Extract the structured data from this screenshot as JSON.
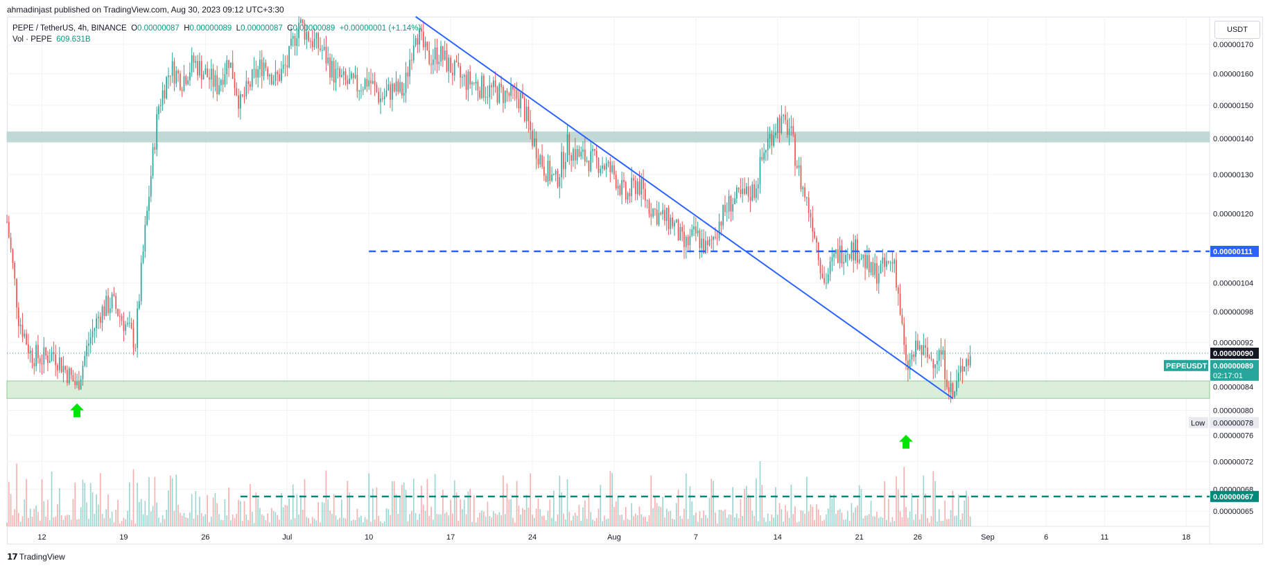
{
  "header": {
    "published": "ahmadinjast published on TradingView.com, Aug 30, 2023 09:12 UTC+3:30"
  },
  "legend": {
    "symbol": "PEPE / TetherUS, 4h, BINANCE",
    "open_label": "O",
    "open": "0.00000087",
    "high_label": "H",
    "high": "0.00000089",
    "low_label": "L",
    "low": "0.00000087",
    "close_label": "C",
    "close": "0.00000089",
    "change": "+0.00000001 (+1.14%)",
    "vol_label": "Vol · PEPE",
    "vol_value": "609.631B"
  },
  "currency": "USDT",
  "branding": {
    "logo_text": "TradingView"
  },
  "colors": {
    "up": "#26a69a",
    "down": "#ef5350",
    "trendline": "#2962ff",
    "level_blue": "#2962ff",
    "level_green": "#00897b",
    "resistance_zone": "#b7d3cf",
    "support_zone": "#d4ecd4",
    "arrow": "#00e600"
  },
  "chart_data": {
    "type": "candlestick",
    "symbol": "PEPEUSDT",
    "interval": "4h",
    "x_range": [
      "2023-06-09",
      "2023-09-20"
    ],
    "y_range": [
      6.3e-07,
      1.8e-06
    ],
    "y_scale": "log",
    "y_ticks": [
      "0.00000170",
      "0.00000160",
      "0.00000150",
      "0.00000140",
      "0.00000130",
      "0.00000120",
      "0.00000104",
      "0.00000098",
      "0.00000092",
      "0.00000084",
      "0.00000080",
      "0.00000076",
      "0.00000072",
      "0.00000068",
      "0.00000065"
    ],
    "x_ticks": [
      "12",
      "19",
      "26",
      "Jul",
      "10",
      "17",
      "24",
      "Aug",
      "7",
      "14",
      "21",
      "26",
      "Sep",
      "6",
      "11",
      "18"
    ],
    "x_tick_dates": [
      "2023-06-12",
      "2023-06-19",
      "2023-06-26",
      "2023-07-03",
      "2023-07-10",
      "2023-07-17",
      "2023-07-24",
      "2023-07-31",
      "2023-08-07",
      "2023-08-14",
      "2023-08-21",
      "2023-08-26",
      "2023-09-01",
      "2023-09-06",
      "2023-09-11",
      "2023-09-18"
    ],
    "price_path": [
      [
        "2023-06-09",
        1.18e-06
      ],
      [
        "2023-06-10",
        9.7e-07
      ],
      [
        "2023-06-11",
        9e-07
      ],
      [
        "2023-06-12",
        8.9e-07
      ],
      [
        "2023-06-13",
        9e-07
      ],
      [
        "2023-06-14",
        8.7e-07
      ],
      [
        "2023-06-15",
        8.4e-07
      ],
      [
        "2023-06-16",
        9.2e-07
      ],
      [
        "2023-06-17",
        9.8e-07
      ],
      [
        "2023-06-18",
        1e-06
      ],
      [
        "2023-06-19",
        9.6e-07
      ],
      [
        "2023-06-20",
        9.2e-07
      ],
      [
        "2023-06-21",
        1.2e-06
      ],
      [
        "2023-06-22",
        1.5e-06
      ],
      [
        "2023-06-23",
        1.62e-06
      ],
      [
        "2023-06-24",
        1.58e-06
      ],
      [
        "2023-06-25",
        1.64e-06
      ],
      [
        "2023-06-26",
        1.6e-06
      ],
      [
        "2023-06-27",
        1.56e-06
      ],
      [
        "2023-06-28",
        1.65e-06
      ],
      [
        "2023-06-29",
        1.5e-06
      ],
      [
        "2023-06-30",
        1.58e-06
      ],
      [
        "2023-07-01",
        1.64e-06
      ],
      [
        "2023-07-02",
        1.58e-06
      ],
      [
        "2023-07-03",
        1.63e-06
      ],
      [
        "2023-07-04",
        1.78e-06
      ],
      [
        "2023-07-05",
        1.72e-06
      ],
      [
        "2023-07-06",
        1.68e-06
      ],
      [
        "2023-07-07",
        1.6e-06
      ],
      [
        "2023-07-08",
        1.57e-06
      ],
      [
        "2023-07-09",
        1.56e-06
      ],
      [
        "2023-07-10",
        1.58e-06
      ],
      [
        "2023-07-11",
        1.52e-06
      ],
      [
        "2023-07-12",
        1.55e-06
      ],
      [
        "2023-07-13",
        1.54e-06
      ],
      [
        "2023-07-14",
        1.76e-06
      ],
      [
        "2023-07-15",
        1.65e-06
      ],
      [
        "2023-07-16",
        1.67e-06
      ],
      [
        "2023-07-17",
        1.62e-06
      ],
      [
        "2023-07-18",
        1.58e-06
      ],
      [
        "2023-07-19",
        1.57e-06
      ],
      [
        "2023-07-20",
        1.55e-06
      ],
      [
        "2023-07-21",
        1.54e-06
      ],
      [
        "2023-07-22",
        1.53e-06
      ],
      [
        "2023-07-23",
        1.52e-06
      ],
      [
        "2023-07-24",
        1.4e-06
      ],
      [
        "2023-07-25",
        1.32e-06
      ],
      [
        "2023-07-26",
        1.28e-06
      ],
      [
        "2023-07-27",
        1.38e-06
      ],
      [
        "2023-07-28",
        1.35e-06
      ],
      [
        "2023-07-29",
        1.34e-06
      ],
      [
        "2023-07-30",
        1.33e-06
      ],
      [
        "2023-07-31",
        1.3e-06
      ],
      [
        "2023-08-01",
        1.24e-06
      ],
      [
        "2023-08-02",
        1.28e-06
      ],
      [
        "2023-08-03",
        1.22e-06
      ],
      [
        "2023-08-04",
        1.19e-06
      ],
      [
        "2023-08-05",
        1.18e-06
      ],
      [
        "2023-08-06",
        1.12e-06
      ],
      [
        "2023-08-07",
        1.15e-06
      ],
      [
        "2023-08-08",
        1.11e-06
      ],
      [
        "2023-08-09",
        1.18e-06
      ],
      [
        "2023-08-10",
        1.23e-06
      ],
      [
        "2023-08-11",
        1.24e-06
      ],
      [
        "2023-08-12",
        1.26e-06
      ],
      [
        "2023-08-13",
        1.38e-06
      ],
      [
        "2023-08-14",
        1.45e-06
      ],
      [
        "2023-08-15",
        1.43e-06
      ],
      [
        "2023-08-16",
        1.28e-06
      ],
      [
        "2023-08-17",
        1.18e-06
      ],
      [
        "2023-08-18",
        1.04e-06
      ],
      [
        "2023-08-19",
        1.1e-06
      ],
      [
        "2023-08-20",
        1.12e-06
      ],
      [
        "2023-08-21",
        1.11e-06
      ],
      [
        "2023-08-22",
        1.06e-06
      ],
      [
        "2023-08-23",
        1.07e-06
      ],
      [
        "2023-08-24",
        1.09e-06
      ],
      [
        "2023-08-25",
        8.7e-07
      ],
      [
        "2023-08-26",
        9.1e-07
      ],
      [
        "2023-08-27",
        8.9e-07
      ],
      [
        "2023-08-28",
        9e-07
      ],
      [
        "2023-08-29",
        8.2e-07
      ],
      [
        "2023-08-30",
        8.9e-07
      ]
    ],
    "trendline": {
      "start": [
        "2023-07-14",
        1.8e-06
      ],
      "end": [
        "2023-08-29",
        8.2e-07
      ]
    },
    "horizontal_levels": [
      {
        "price": 1.11e-06,
        "label": "0.00000111",
        "style": "dashed",
        "color": "#2962ff",
        "start": "2023-07-10"
      },
      {
        "price": 6.7e-07,
        "label": "0.00000067",
        "style": "dashed",
        "color": "#00897b",
        "start": "2023-06-29"
      }
    ],
    "zones": [
      {
        "from": 1.39e-06,
        "to": 1.42e-06,
        "color": "#b7d3cf"
      },
      {
        "from": 8.2e-07,
        "to": 8.5e-07,
        "color": "#d4ecd4"
      }
    ],
    "arrows": [
      {
        "date": "2023-06-15",
        "price": 8e-07
      },
      {
        "date": "2023-08-25",
        "price": 7.5e-07
      }
    ],
    "price_labels": {
      "last": {
        "price": 9e-07,
        "text": "0.00000090"
      },
      "current": {
        "price": 8.9e-07,
        "text": "0.00000089",
        "ticker": "PEPEUSDT",
        "countdown": "02:17:01"
      },
      "low": {
        "price": 7.8e-07,
        "text": "0.00000078",
        "tag": "Low"
      }
    }
  }
}
